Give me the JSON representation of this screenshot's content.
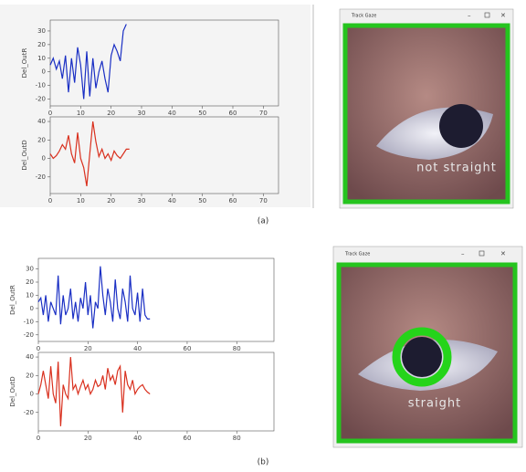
{
  "chart_data": [
    {
      "type": "line",
      "y_label": "Del_OutR",
      "xlim": [
        0,
        75
      ],
      "xticks": [
        0,
        10,
        20,
        30,
        40,
        50,
        60,
        70
      ],
      "ylim": [
        -25,
        38
      ],
      "yticks": [
        -20,
        -10,
        0,
        10,
        20,
        30
      ],
      "x": [
        0,
        1,
        2,
        3,
        4,
        5,
        6,
        7,
        8,
        9,
        10,
        11,
        12,
        13,
        14,
        15,
        16,
        17,
        18,
        19,
        20,
        21,
        22,
        23,
        24,
        25
      ],
      "series": [
        {
          "color": "#1a2fc4",
          "values": [
            5,
            10,
            2,
            8,
            -5,
            12,
            -15,
            10,
            -8,
            18,
            5,
            -20,
            15,
            -18,
            10,
            -12,
            0,
            8,
            -5,
            -15,
            12,
            20,
            15,
            8,
            30,
            35
          ]
        }
      ]
    },
    {
      "type": "line",
      "y_label": "Del_OutD",
      "xlim": [
        0,
        75
      ],
      "xticks": [
        0,
        10,
        20,
        30,
        40,
        50,
        60,
        70
      ],
      "ylim": [
        -38,
        45
      ],
      "yticks": [
        -20,
        0,
        20,
        40
      ],
      "x": [
        0,
        1,
        2,
        3,
        4,
        5,
        6,
        7,
        8,
        9,
        10,
        11,
        12,
        13,
        14,
        15,
        16,
        17,
        18,
        19,
        20,
        21,
        22,
        23,
        24,
        25,
        26
      ],
      "series": [
        {
          "color": "#d9301e",
          "values": [
            5,
            0,
            3,
            8,
            15,
            10,
            25,
            5,
            -5,
            28,
            0,
            -10,
            -30,
            5,
            40,
            18,
            2,
            10,
            0,
            5,
            -2,
            8,
            3,
            0,
            5,
            10,
            10
          ]
        }
      ]
    },
    {
      "type": "line",
      "y_label": "Del_OutR",
      "xlim": [
        0,
        95
      ],
      "xticks": [
        0,
        20,
        40,
        60,
        80
      ],
      "ylim": [
        -25,
        38
      ],
      "yticks": [
        -20,
        -10,
        0,
        10,
        20,
        30
      ],
      "x": [
        0,
        1,
        2,
        3,
        4,
        5,
        6,
        7,
        8,
        9,
        10,
        11,
        12,
        13,
        14,
        15,
        16,
        17,
        18,
        19,
        20,
        21,
        22,
        23,
        24,
        25,
        26,
        27,
        28,
        29,
        30,
        31,
        32,
        33,
        34,
        35,
        36,
        37,
        38,
        39,
        40,
        41,
        42,
        43,
        44,
        45
      ],
      "series": [
        {
          "color": "#1a2fc4",
          "values": [
            5,
            8,
            -5,
            10,
            -10,
            5,
            0,
            -5,
            25,
            -12,
            10,
            -5,
            0,
            15,
            -8,
            5,
            -10,
            8,
            0,
            20,
            -5,
            10,
            -15,
            5,
            0,
            32,
            10,
            -5,
            15,
            5,
            -10,
            22,
            0,
            -8,
            15,
            5,
            -10,
            25,
            0,
            -5,
            12,
            -10,
            15,
            -5,
            -8,
            -8
          ]
        }
      ]
    },
    {
      "type": "line",
      "y_label": "Del_OutD",
      "xlim": [
        0,
        95
      ],
      "xticks": [
        0,
        20,
        40,
        60,
        80
      ],
      "ylim": [
        -40,
        45
      ],
      "yticks": [
        -20,
        0,
        20,
        40
      ],
      "x": [
        0,
        1,
        2,
        3,
        4,
        5,
        6,
        7,
        8,
        9,
        10,
        11,
        12,
        13,
        14,
        15,
        16,
        17,
        18,
        19,
        20,
        21,
        22,
        23,
        24,
        25,
        26,
        27,
        28,
        29,
        30,
        31,
        32,
        33,
        34,
        35,
        36,
        37,
        38,
        39,
        40,
        41,
        42,
        43,
        44,
        45
      ],
      "series": [
        {
          "color": "#d9301e",
          "values": [
            0,
            10,
            25,
            10,
            -5,
            30,
            0,
            -10,
            35,
            -35,
            10,
            0,
            -5,
            40,
            5,
            10,
            0,
            8,
            15,
            5,
            10,
            0,
            5,
            15,
            8,
            10,
            20,
            5,
            28,
            15,
            20,
            10,
            25,
            30,
            -20,
            25,
            10,
            5,
            15,
            0,
            5,
            8,
            10,
            5,
            2,
            0
          ]
        }
      ]
    }
  ],
  "panels": [
    {
      "caption": "(a)",
      "window_title": "Track Gaze",
      "status": "not straight"
    },
    {
      "caption": "(b)",
      "window_title": "Track Gaze",
      "status": "straight"
    }
  ]
}
